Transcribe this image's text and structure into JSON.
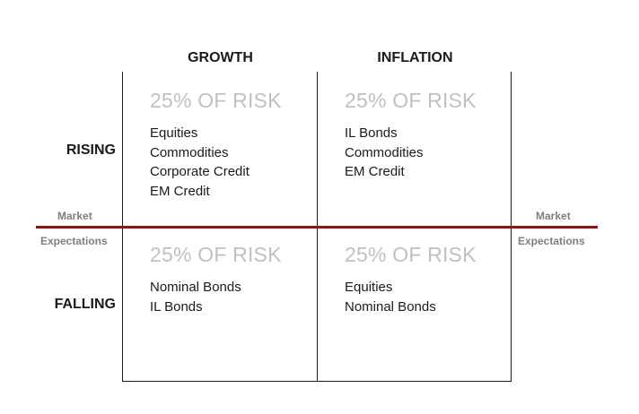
{
  "columns": [
    "GROWTH",
    "INFLATION"
  ],
  "rows": [
    "RISING",
    "FALLING"
  ],
  "market_label": "Market",
  "expectations_label": "Expectations",
  "quadrants": {
    "rising_growth": {
      "risk": "25% OF RISK",
      "items": [
        "Equities",
        "Commodities",
        "Corporate Credit",
        "EM Credit"
      ]
    },
    "rising_inflation": {
      "risk": "25% OF RISK",
      "items": [
        "IL Bonds",
        "Commodities",
        "EM Credit"
      ]
    },
    "falling_growth": {
      "risk": "25% OF RISK",
      "items": [
        "Nominal Bonds",
        "IL Bonds"
      ]
    },
    "falling_inflation": {
      "risk": "25% OF RISK",
      "items": [
        "Equities",
        "Nominal Bonds"
      ]
    }
  },
  "colors": {
    "divider": "#7b1c1c",
    "risk_text": "#c0c0c0",
    "market_text": "#7f7f7f"
  }
}
